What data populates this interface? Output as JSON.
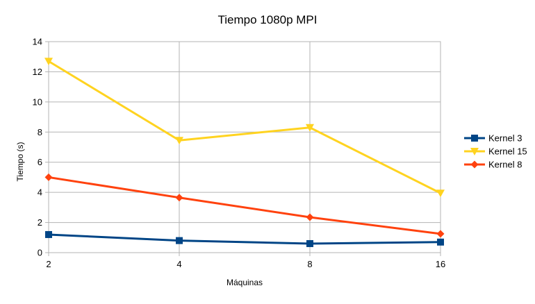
{
  "chart_data": {
    "type": "line",
    "title": "Tiempo 1080p MPI",
    "xlabel": "Máquinas",
    "ylabel": "Tiempo (s)",
    "categories": [
      "2",
      "4",
      "8",
      "16"
    ],
    "ylim": [
      0,
      14
    ],
    "yticks": [
      "0",
      "2",
      "4",
      "6",
      "8",
      "10",
      "12",
      "14"
    ],
    "grid": true,
    "legend_position": "right",
    "series": [
      {
        "name": "Kernel 3",
        "color": "#004586",
        "marker": "square",
        "values": [
          1.2,
          0.8,
          0.6,
          0.7
        ]
      },
      {
        "name": "Kernel 15",
        "color": "#ffd320",
        "marker": "triangle-down",
        "values": [
          12.7,
          7.45,
          8.3,
          3.95
        ]
      },
      {
        "name": "Kernel 8",
        "color": "#ff420e",
        "marker": "diamond",
        "values": [
          5.0,
          3.65,
          2.35,
          1.25
        ]
      }
    ]
  }
}
